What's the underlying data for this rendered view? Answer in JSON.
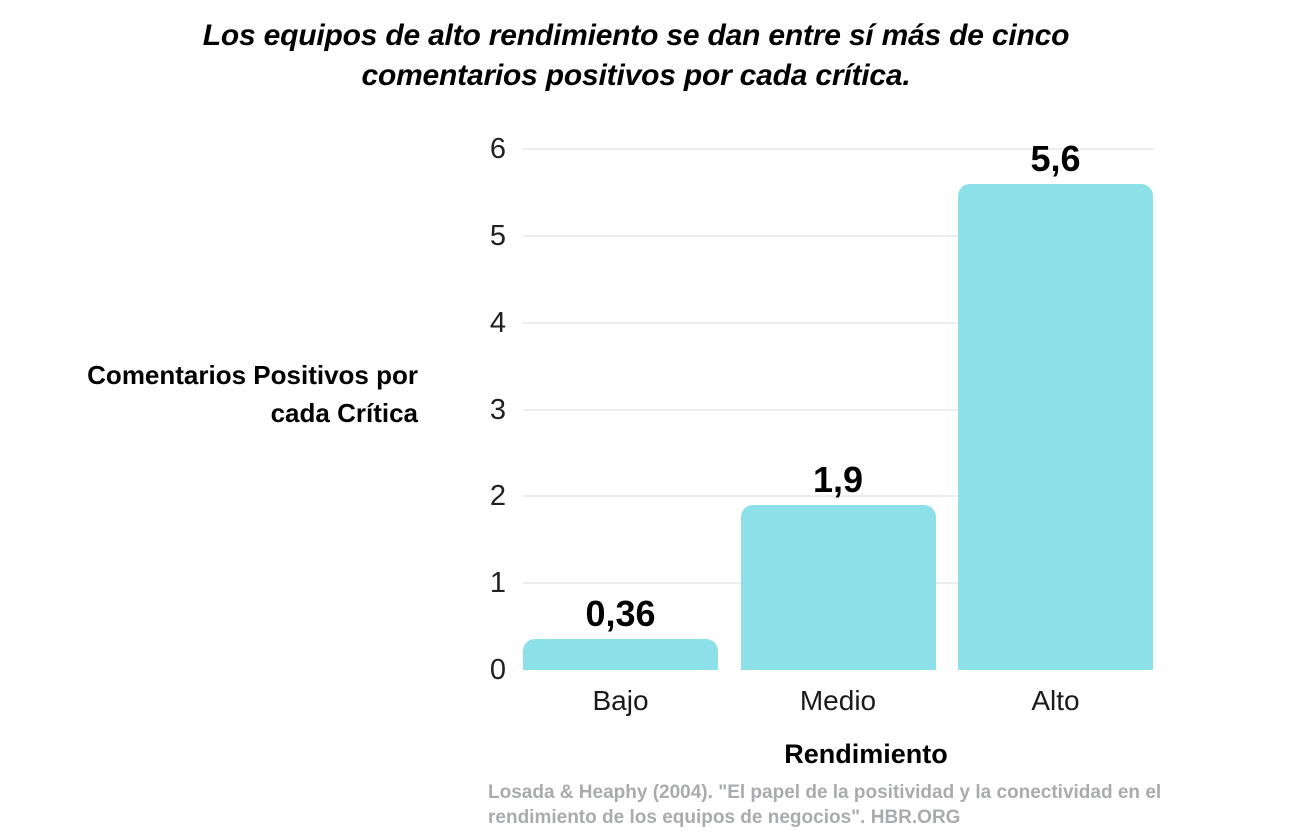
{
  "title": {
    "line1": "Los equipos de alto rendimiento se dan entre sí más de cinco",
    "line2": "comentarios positivos por cada crítica."
  },
  "y_axis_label": {
    "line1": "Comentarios Positivos por",
    "line2": "cada Crítica"
  },
  "x_axis_label": "Rendimiento",
  "source": {
    "line1": "Losada & Heaphy (2004). \"El papel de la positividad y la conectividad en el",
    "line2": "rendimiento de los equipos de negocios\". HBR.ORG"
  },
  "colors": {
    "bar": "#8de0e7",
    "gridline": "#ededed",
    "tick_text": "#212121",
    "category_text": "#1a1a1a",
    "title_text": "#000000",
    "source_text": "#a9abad",
    "background": "#ffffff"
  },
  "chart_data": {
    "type": "bar",
    "title": "Los equipos de alto rendimiento se dan entre sí más de cinco comentarios positivos por cada crítica.",
    "categories": [
      "Bajo",
      "Medio",
      "Alto"
    ],
    "values": [
      0.36,
      1.9,
      5.6
    ],
    "value_labels": [
      "0,36",
      "1,9",
      "5,6"
    ],
    "xlabel": "Rendimiento",
    "ylabel": "Comentarios Positivos por cada Crítica",
    "ylim": [
      0,
      6
    ],
    "yticks": [
      0,
      1,
      2,
      3,
      4,
      5,
      6
    ],
    "grid": true,
    "legend": false,
    "bar_color": "#8de0e7"
  }
}
